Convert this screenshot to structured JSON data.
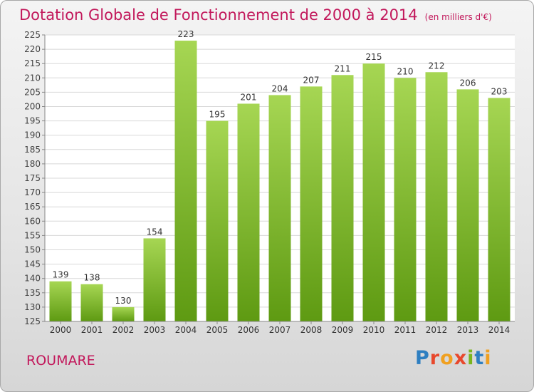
{
  "header": {
    "title": "Dotation Globale de Fonctionnement de 2000 à 2014",
    "unit": "(en milliers d'€)"
  },
  "footer": {
    "commune": "ROUMARE",
    "brand": "Proxiti"
  },
  "colors": {
    "title": "#c2185b",
    "bar_light": "#9fd24a",
    "bar_dark": "#5e9a12",
    "grid": "#d8d8d8",
    "axis": "#888888"
  },
  "chart_data": {
    "type": "bar",
    "title": "Dotation Globale de Fonctionnement de 2000 à 2014",
    "categories": [
      "2000",
      "2001",
      "2002",
      "2003",
      "2004",
      "2005",
      "2006",
      "2007",
      "2008",
      "2009",
      "2010",
      "2011",
      "2012",
      "2013",
      "2014"
    ],
    "values": [
      139,
      138,
      130,
      154,
      223,
      195,
      201,
      204,
      207,
      211,
      215,
      210,
      212,
      206,
      203
    ],
    "ylim": [
      125,
      225
    ],
    "yticks": [
      125,
      130,
      135,
      140,
      145,
      150,
      155,
      160,
      165,
      170,
      175,
      180,
      185,
      190,
      195,
      200,
      205,
      210,
      215,
      220,
      225
    ],
    "grid": true,
    "data_labels": true
  }
}
